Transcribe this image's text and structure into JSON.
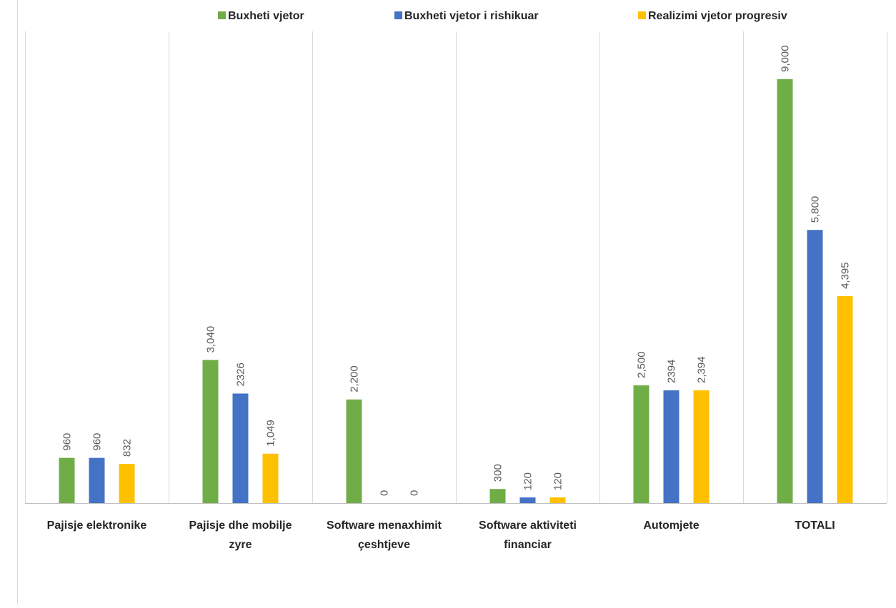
{
  "chart_data": {
    "type": "bar",
    "categories": [
      [
        "Pajisje elektronike"
      ],
      [
        "Pajisje dhe mobilje",
        "zyre"
      ],
      [
        "Software menaxhimit",
        "çeshtjeve"
      ],
      [
        "Software aktiviteti",
        "financiar"
      ],
      [
        "Automjete"
      ],
      [
        "TOTALI"
      ]
    ],
    "series": [
      {
        "name": "Buxheti vjetor",
        "color": "#70AD47",
        "values": [
          960,
          3040,
          2200,
          300,
          2500,
          9000
        ],
        "labels": [
          "960",
          "3,040",
          "2,200",
          "300",
          "2,500",
          "9,000"
        ]
      },
      {
        "name": "Buxheti vjetor i rishikuar",
        "color": "#4472C4",
        "values": [
          960,
          2326,
          0,
          120,
          2394,
          5800
        ],
        "labels": [
          "960",
          "2326",
          "0",
          "120",
          "2394",
          "5,800"
        ]
      },
      {
        "name": "Realizimi vjetor progresiv",
        "color": "#FFC000",
        "values": [
          832,
          1049,
          0,
          120,
          2394,
          4395
        ],
        "labels": [
          "832",
          "1,049",
          "0",
          "120",
          "2,394",
          "4,395"
        ]
      }
    ],
    "ylim": [
      0,
      9000
    ],
    "grid": false,
    "legend_position": "top",
    "title": "",
    "xlabel": "",
    "ylabel": ""
  }
}
